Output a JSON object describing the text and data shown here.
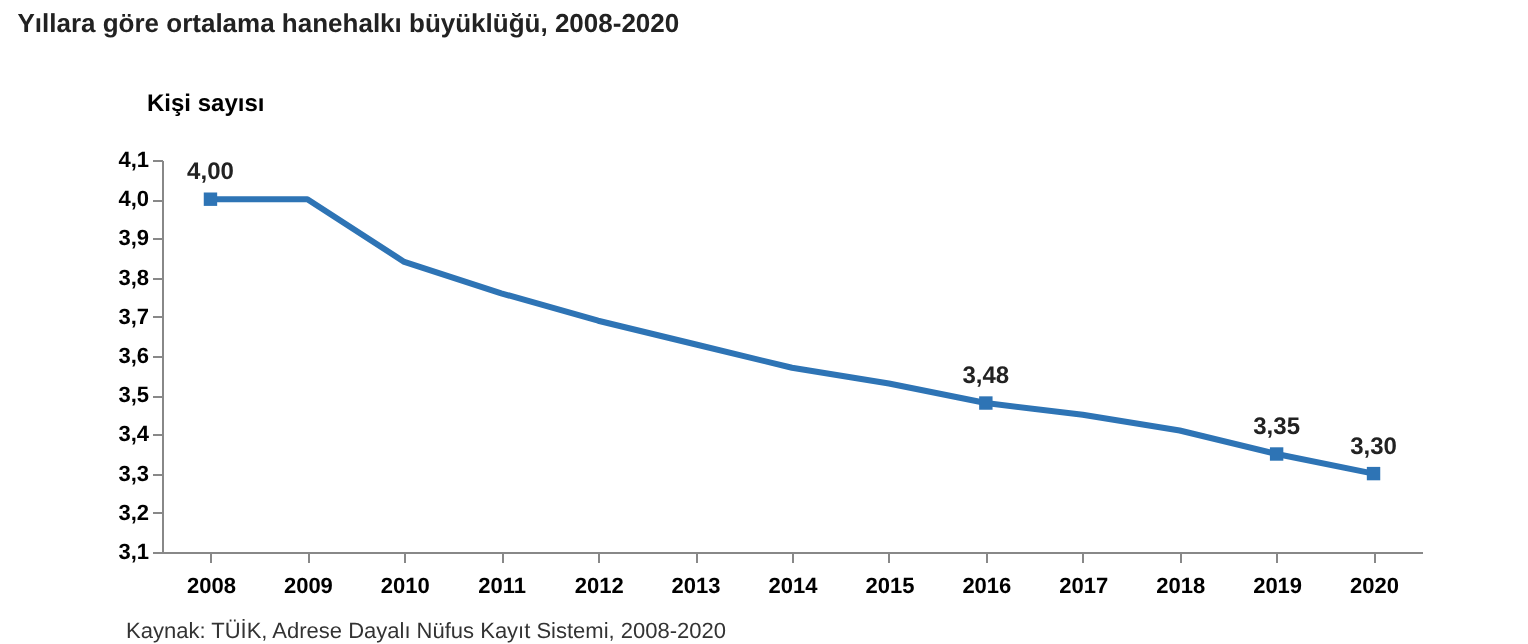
{
  "chart_data": {
    "type": "line",
    "title": "Yıllara göre ortalama hanehalkı büyüklüğü, 2008-2020",
    "ylabel": "Kişi sayısı",
    "categories": [
      "2008",
      "2009",
      "2010",
      "2011",
      "2012",
      "2013",
      "2014",
      "2015",
      "2016",
      "2017",
      "2018",
      "2019",
      "2020"
    ],
    "series": [
      {
        "color": "#2e74b5",
        "values": [
          4.0,
          4.0,
          3.84,
          3.76,
          3.69,
          3.63,
          3.57,
          3.53,
          3.48,
          3.45,
          3.41,
          3.35,
          3.3
        ],
        "value_labels": [
          "4,00",
          null,
          null,
          null,
          null,
          null,
          null,
          null,
          "3,48",
          null,
          null,
          "3,35",
          "3,30"
        ]
      }
    ],
    "ylim": [
      3.1,
      4.1
    ],
    "yticks": [
      {
        "value": 3.1,
        "label": "3,1"
      },
      {
        "value": 3.2,
        "label": "3,2"
      },
      {
        "value": 3.3,
        "label": "3,3"
      },
      {
        "value": 3.4,
        "label": "3,4"
      },
      {
        "value": 3.5,
        "label": "3,5"
      },
      {
        "value": 3.6,
        "label": "3,6"
      },
      {
        "value": 3.7,
        "label": "3,7"
      },
      {
        "value": 3.8,
        "label": "3,8"
      },
      {
        "value": 3.9,
        "label": "3,9"
      },
      {
        "value": 4.0,
        "label": "4,0"
      },
      {
        "value": 4.1,
        "label": "4,1"
      }
    ],
    "grid": false,
    "annotations": [
      "Kaynak: TÜİK, Adrese Dayalı Nüfus Kayıt Sistemi, 2008-2020"
    ]
  }
}
